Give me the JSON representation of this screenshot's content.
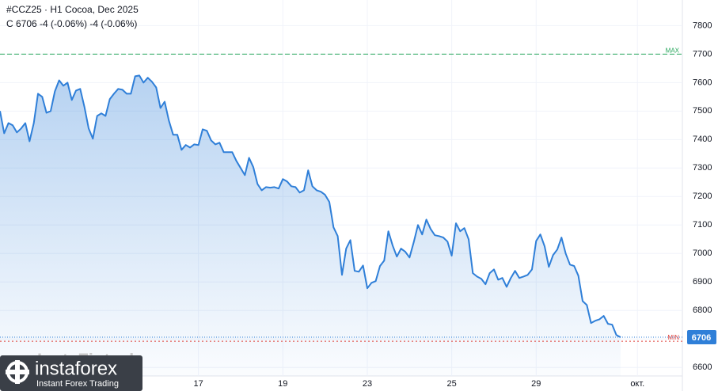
{
  "header": {
    "title": "#CCZ25 · H1 Cocoa, Dec 2025",
    "quote": "C 6706 -4 (-0.06%) -4 (-0.06%)"
  },
  "logo": {
    "name": "instaforex",
    "tagline": "Instant Forex Trading",
    "watermark": "InstaFintech"
  },
  "chart_data": {
    "type": "area",
    "color": "#2f7fd8",
    "categories": [
      null,
      null,
      null,
      null,
      null,
      null,
      null,
      null,
      null,
      null,
      null,
      null,
      null,
      null,
      null,
      null,
      null,
      null,
      null,
      null,
      null,
      null,
      null,
      null,
      null,
      null,
      null,
      null,
      null,
      null,
      null,
      null,
      null,
      null,
      null,
      null,
      null,
      null,
      null,
      null,
      null,
      null,
      null,
      null,
      null,
      null,
      null,
      "17",
      null,
      null,
      null,
      null,
      null,
      null,
      null,
      null,
      null,
      null,
      null,
      null,
      null,
      null,
      null,
      null,
      null,
      null,
      null,
      "19",
      null,
      null,
      null,
      null,
      null,
      null,
      null,
      null,
      null,
      null,
      null,
      null,
      null,
      null,
      null,
      null,
      null,
      null,
      null,
      "23",
      null,
      null,
      null,
      null,
      null,
      null,
      null,
      null,
      null,
      null,
      null,
      null,
      null,
      null,
      null,
      null,
      null,
      null,
      null,
      "25",
      null,
      null,
      null,
      null,
      null,
      null,
      null,
      null,
      null,
      null,
      null,
      null,
      null,
      null,
      null,
      null,
      null,
      null,
      null,
      "29",
      null,
      null,
      null,
      null,
      null,
      null,
      null,
      null,
      null,
      null,
      null,
      null,
      null,
      null,
      null,
      null,
      null,
      null,
      null,
      null,
      null,
      null,
      null,
      "окт."
    ],
    "values": [
      7500,
      7422,
      7458,
      7450,
      7425,
      7439,
      7458,
      7394,
      7458,
      7561,
      7550,
      7494,
      7500,
      7569,
      7608,
      7589,
      7600,
      7539,
      7572,
      7578,
      7514,
      7439,
      7403,
      7483,
      7492,
      7483,
      7542,
      7561,
      7578,
      7575,
      7561,
      7561,
      7622,
      7625,
      7600,
      7617,
      7603,
      7583,
      7511,
      7533,
      7467,
      7417,
      7417,
      7364,
      7381,
      7372,
      7383,
      7381,
      7436,
      7431,
      7397,
      7383,
      7389,
      7356,
      7356,
      7356,
      7325,
      7300,
      7275,
      7336,
      7303,
      7244,
      7222,
      7233,
      7231,
      7233,
      7228,
      7261,
      7253,
      7236,
      7233,
      7214,
      7222,
      7292,
      7236,
      7222,
      7217,
      7206,
      7181,
      7092,
      7061,
      6925,
      7017,
      7047,
      6939,
      6936,
      6958,
      6878,
      6897,
      6903,
      6956,
      6975,
      7078,
      7028,
      6989,
      7017,
      7006,
      6986,
      7039,
      7100,
      7067,
      7119,
      7086,
      7064,
      7061,
      7056,
      7042,
      6992,
      7106,
      7078,
      7089,
      7050,
      6931,
      6919,
      6911,
      6892,
      6931,
      6944,
      6908,
      6914,
      6883,
      6914,
      6939,
      6914,
      6919,
      6925,
      6944,
      7044,
      7067,
      7025,
      6953,
      6994,
      7014,
      7056,
      7000,
      6961,
      6956,
      6922,
      6833,
      6819,
      6756,
      6764,
      6769,
      6781,
      6753,
      6750,
      6714,
      6706,
      null,
      null,
      null,
      null
    ],
    "ylim": [
      6570,
      7890
    ],
    "yticks": [
      6600,
      6700,
      6800,
      6900,
      7000,
      7100,
      7200,
      7300,
      7400,
      7500,
      7600,
      7700,
      7800
    ],
    "grid": true,
    "max_line": {
      "label": "MAX",
      "value": 7700,
      "color": "#26a65b"
    },
    "min_line": {
      "label": "MIN",
      "value": 6692,
      "color": "#e0403a"
    },
    "last_price": 6706
  }
}
